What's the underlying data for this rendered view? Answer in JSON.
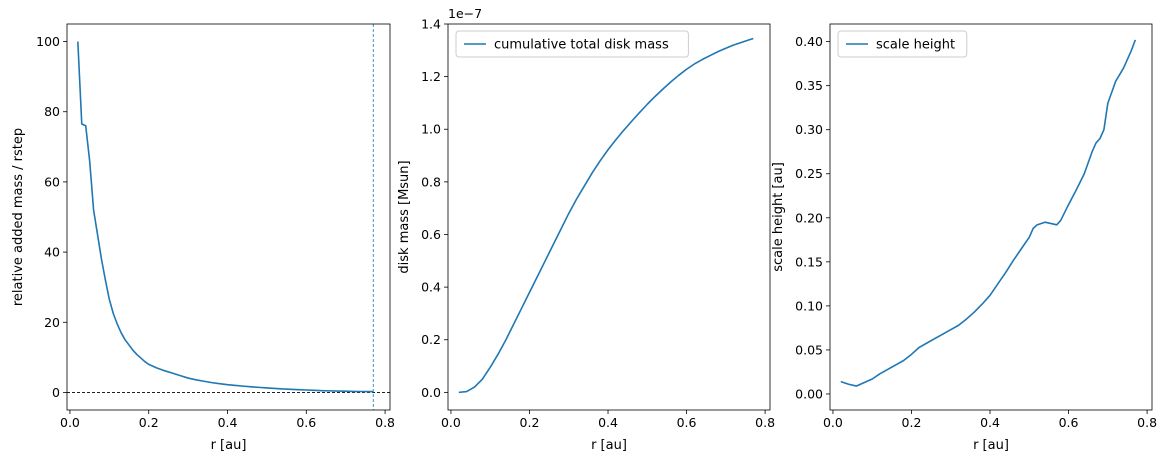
{
  "colors": {
    "line": "#1f77b4",
    "guide": "#1f77b4",
    "zero_line": "#000000",
    "axes": "#000000",
    "legend_border": "#cccccc"
  },
  "chart_data": [
    {
      "type": "line",
      "xlabel": "r [au]",
      "ylabel": "relative added mass / rstep",
      "xlim": [
        -0.0075,
        0.8125
      ],
      "ylim": [
        -5,
        105
      ],
      "xticks": [
        0.0,
        0.2,
        0.4,
        0.6,
        0.8
      ],
      "xtick_labels": [
        "0.0",
        "0.2",
        "0.4",
        "0.6",
        "0.8"
      ],
      "yticks": [
        0,
        20,
        40,
        60,
        80,
        100
      ],
      "ytick_labels": [
        "0",
        "20",
        "40",
        "60",
        "80",
        "100"
      ],
      "reference_lines": {
        "horizontal_y": 0,
        "vertical_x": 0.77
      },
      "series": [
        {
          "x": [
            0.02,
            0.03,
            0.04,
            0.05,
            0.06,
            0.07,
            0.08,
            0.09,
            0.1,
            0.11,
            0.12,
            0.13,
            0.14,
            0.15,
            0.16,
            0.17,
            0.18,
            0.19,
            0.2,
            0.22,
            0.24,
            0.26,
            0.28,
            0.3,
            0.32,
            0.34,
            0.36,
            0.38,
            0.4,
            0.42,
            0.44,
            0.46,
            0.48,
            0.5,
            0.52,
            0.54,
            0.56,
            0.58,
            0.6,
            0.62,
            0.64,
            0.66,
            0.68,
            0.7,
            0.72,
            0.74,
            0.76,
            0.77
          ],
          "y": [
            100,
            76.5,
            76,
            66,
            52,
            45,
            38,
            32,
            26.5,
            22.5,
            19.5,
            17,
            15,
            13.5,
            12,
            10.8,
            9.8,
            8.8,
            8.0,
            7.0,
            6.2,
            5.5,
            4.8,
            4.1,
            3.6,
            3.2,
            2.8,
            2.5,
            2.2,
            2.0,
            1.8,
            1.6,
            1.45,
            1.3,
            1.15,
            1.0,
            0.9,
            0.8,
            0.7,
            0.6,
            0.5,
            0.45,
            0.4,
            0.35,
            0.3,
            0.27,
            0.25,
            0.24
          ]
        }
      ]
    },
    {
      "type": "line",
      "xlabel": "r [au]",
      "ylabel": "disk mass [Msun]",
      "offset_text": "1e−7",
      "xlim": [
        -0.0075,
        0.8125
      ],
      "ylim": [
        -0.067,
        1.4
      ],
      "xticks": [
        0.0,
        0.2,
        0.4,
        0.6,
        0.8
      ],
      "xtick_labels": [
        "0.0",
        "0.2",
        "0.4",
        "0.6",
        "0.8"
      ],
      "yticks": [
        0.0,
        0.2,
        0.4,
        0.6,
        0.8,
        1.0,
        1.2,
        1.4
      ],
      "ytick_labels": [
        "0.0",
        "0.2",
        "0.4",
        "0.6",
        "0.8",
        "1.0",
        "1.2",
        "1.4"
      ],
      "legend_position": "upper-left",
      "series": [
        {
          "name": "cumulative total disk mass",
          "x": [
            0.02,
            0.04,
            0.06,
            0.08,
            0.1,
            0.12,
            0.14,
            0.16,
            0.18,
            0.2,
            0.22,
            0.24,
            0.26,
            0.28,
            0.3,
            0.32,
            0.34,
            0.36,
            0.38,
            0.4,
            0.42,
            0.44,
            0.46,
            0.48,
            0.5,
            0.52,
            0.54,
            0.56,
            0.58,
            0.6,
            0.62,
            0.64,
            0.66,
            0.68,
            0.7,
            0.72,
            0.74,
            0.76,
            0.77
          ],
          "y": [
            0.0,
            0.003,
            0.02,
            0.05,
            0.095,
            0.145,
            0.2,
            0.26,
            0.32,
            0.38,
            0.44,
            0.5,
            0.56,
            0.62,
            0.68,
            0.735,
            0.785,
            0.835,
            0.88,
            0.922,
            0.96,
            0.996,
            1.03,
            1.063,
            1.095,
            1.125,
            1.153,
            1.18,
            1.205,
            1.228,
            1.248,
            1.265,
            1.28,
            1.295,
            1.308,
            1.32,
            1.33,
            1.34,
            1.345
          ]
        }
      ]
    },
    {
      "type": "line",
      "xlabel": "r [au]",
      "ylabel": "scale height [au]",
      "xlim": [
        -0.0075,
        0.8125
      ],
      "ylim": [
        -0.0182,
        0.42
      ],
      "xticks": [
        0.0,
        0.2,
        0.4,
        0.6,
        0.8
      ],
      "xtick_labels": [
        "0.0",
        "0.2",
        "0.4",
        "0.6",
        "0.8"
      ],
      "yticks": [
        0.0,
        0.05,
        0.1,
        0.15,
        0.2,
        0.25,
        0.3,
        0.35,
        0.4
      ],
      "ytick_labels": [
        "0.00",
        "0.05",
        "0.10",
        "0.15",
        "0.20",
        "0.25",
        "0.30",
        "0.35",
        "0.40"
      ],
      "legend_position": "upper-left",
      "series": [
        {
          "name": "scale height",
          "x": [
            0.02,
            0.04,
            0.06,
            0.08,
            0.1,
            0.12,
            0.14,
            0.16,
            0.18,
            0.2,
            0.22,
            0.24,
            0.26,
            0.28,
            0.3,
            0.32,
            0.34,
            0.36,
            0.38,
            0.4,
            0.42,
            0.44,
            0.46,
            0.48,
            0.5,
            0.51,
            0.52,
            0.54,
            0.56,
            0.57,
            0.58,
            0.6,
            0.62,
            0.64,
            0.66,
            0.67,
            0.68,
            0.69,
            0.7,
            0.72,
            0.74,
            0.76,
            0.77
          ],
          "y": [
            0.014,
            0.011,
            0.009,
            0.013,
            0.017,
            0.023,
            0.028,
            0.033,
            0.038,
            0.045,
            0.053,
            0.058,
            0.063,
            0.068,
            0.073,
            0.078,
            0.085,
            0.093,
            0.102,
            0.112,
            0.125,
            0.138,
            0.152,
            0.165,
            0.178,
            0.188,
            0.192,
            0.195,
            0.193,
            0.192,
            0.197,
            0.215,
            0.232,
            0.25,
            0.275,
            0.285,
            0.29,
            0.3,
            0.33,
            0.355,
            0.37,
            0.39,
            0.402
          ]
        }
      ]
    }
  ]
}
